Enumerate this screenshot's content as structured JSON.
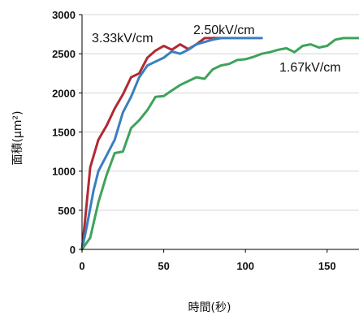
{
  "chart_data": {
    "type": "line",
    "title": "",
    "xlabel": "時間(秒)",
    "ylabel": "面積(μm²)",
    "xlim": [
      0,
      170
    ],
    "ylim": [
      0,
      3000
    ],
    "xticks": [
      "0",
      "50",
      "100",
      "150"
    ],
    "yticks": [
      "0",
      "500",
      "1000",
      "1500",
      "2000",
      "2500",
      "3000"
    ],
    "grid": "horizontal",
    "legend": "inline-labels",
    "series": [
      {
        "name": "3.33kV/cm",
        "color": "#b02a35",
        "x": [
          0,
          2,
          5,
          10,
          15,
          20,
          25,
          30,
          35,
          40,
          45,
          50,
          55,
          60,
          65,
          70,
          75,
          80,
          85
        ],
        "y": [
          0,
          400,
          1050,
          1400,
          1580,
          1800,
          1980,
          2200,
          2250,
          2450,
          2540,
          2600,
          2550,
          2620,
          2560,
          2620,
          2700,
          2700,
          2700
        ]
      },
      {
        "name": "2.50kV/cm",
        "color": "#3a7fc1",
        "x": [
          0,
          3,
          7,
          10,
          15,
          20,
          25,
          30,
          35,
          40,
          45,
          50,
          55,
          60,
          65,
          70,
          75,
          80,
          85,
          90,
          95,
          100,
          110
        ],
        "y": [
          0,
          300,
          750,
          1000,
          1200,
          1400,
          1750,
          1950,
          2200,
          2350,
          2400,
          2450,
          2530,
          2500,
          2550,
          2620,
          2650,
          2680,
          2700,
          2700,
          2700,
          2700,
          2700
        ]
      },
      {
        "name": "1.67kV/cm",
        "color": "#3ea35b",
        "x": [
          0,
          5,
          10,
          15,
          20,
          25,
          30,
          35,
          40,
          45,
          50,
          55,
          60,
          65,
          70,
          75,
          80,
          85,
          90,
          95,
          100,
          105,
          110,
          115,
          120,
          125,
          130,
          135,
          140,
          145,
          150,
          155,
          160,
          165,
          170
        ],
        "y": [
          0,
          150,
          600,
          950,
          1230,
          1250,
          1550,
          1650,
          1780,
          1950,
          1960,
          2030,
          2100,
          2150,
          2200,
          2180,
          2300,
          2350,
          2370,
          2420,
          2430,
          2460,
          2500,
          2520,
          2550,
          2570,
          2520,
          2600,
          2620,
          2580,
          2600,
          2680,
          2700,
          2700,
          2700
        ]
      }
    ]
  }
}
